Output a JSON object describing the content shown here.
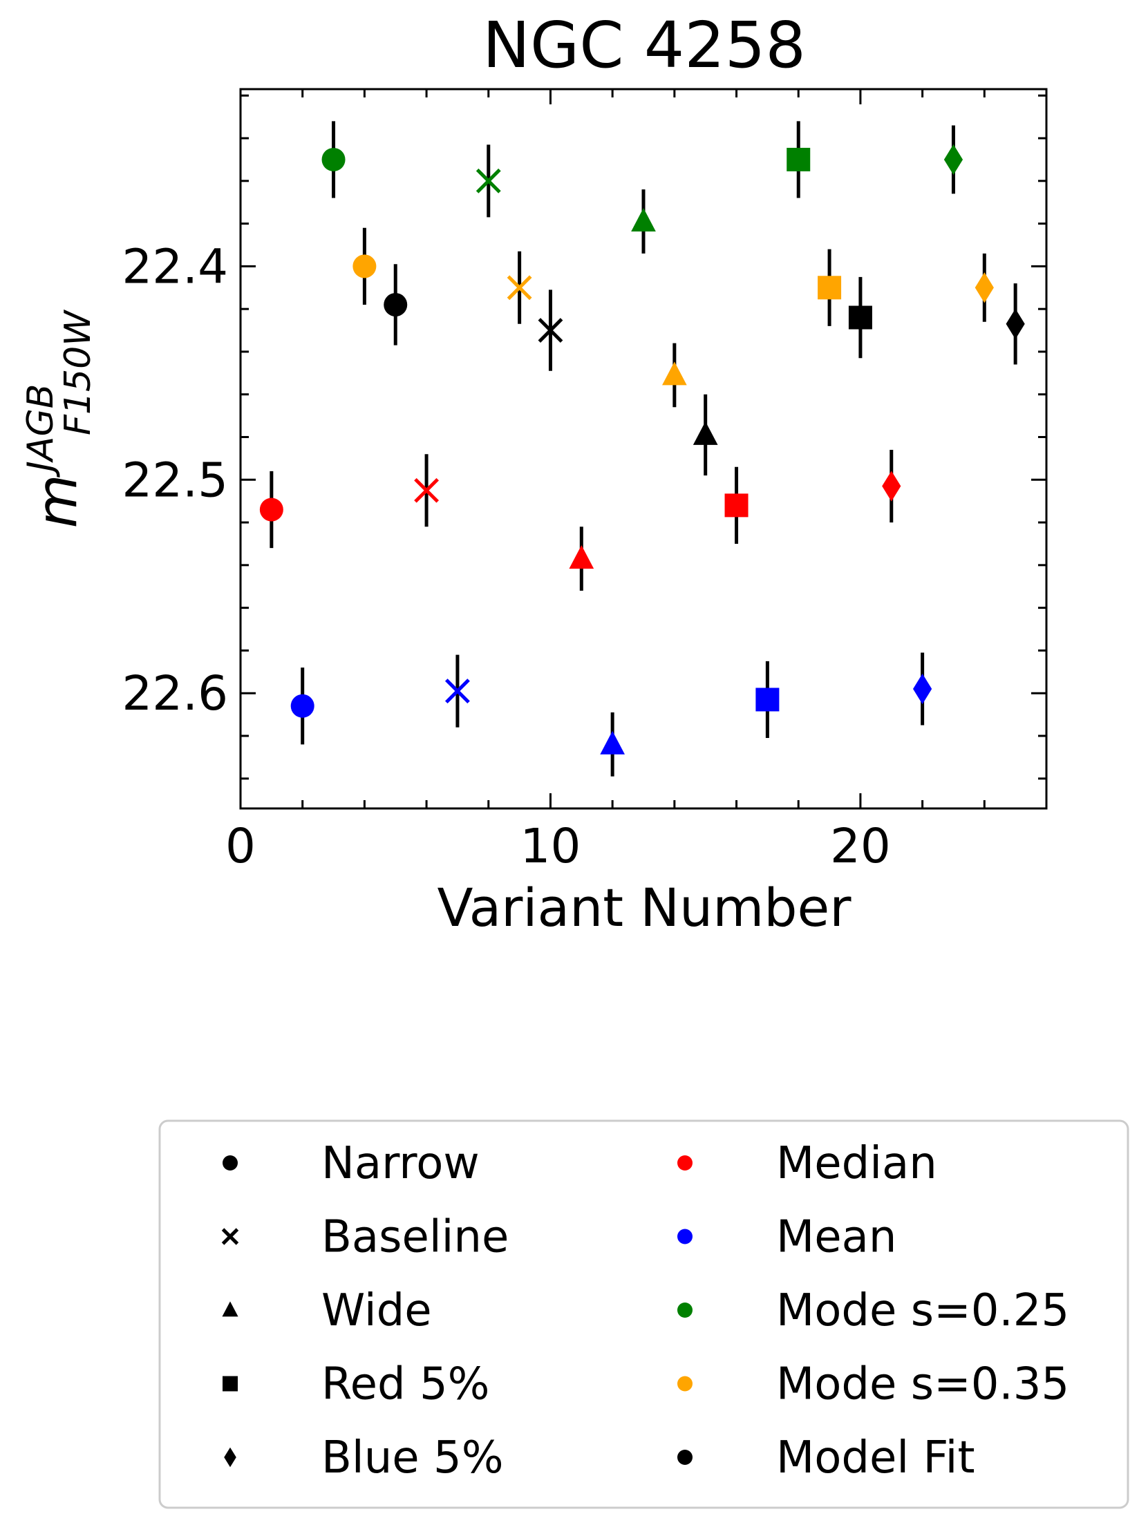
{
  "chart_data": {
    "type": "scatter",
    "title": "NGC 4258",
    "xlabel": "Variant Number",
    "ylabel": {
      "base": "m",
      "sup": "JAGB",
      "sub": "F150W"
    },
    "xlim": [
      0,
      26
    ],
    "ylim": [
      22.654,
      22.317
    ],
    "y_inverted": true,
    "xticks": [
      0,
      10,
      20
    ],
    "yticks": [
      22.4,
      22.5,
      22.6
    ],
    "ytick_labels": [
      "22.4",
      "22.5",
      "22.6"
    ],
    "xtick_labels": [
      "0",
      "10",
      "20"
    ],
    "error_bar_color": "#000000",
    "colors": {
      "Median": "#ff0000",
      "Mean": "#0000ff",
      "Mode s=0.25": "#008000",
      "Mode s=0.35": "#ffa500",
      "Model Fit": "#000000"
    },
    "points": [
      {
        "x": 1,
        "y": 22.514,
        "err": 0.018,
        "marker": "circle",
        "color": "#ff0000"
      },
      {
        "x": 2,
        "y": 22.606,
        "err": 0.018,
        "marker": "circle",
        "color": "#0000ff"
      },
      {
        "x": 3,
        "y": 22.35,
        "err": 0.018,
        "marker": "circle",
        "color": "#008000"
      },
      {
        "x": 4,
        "y": 22.4,
        "err": 0.018,
        "marker": "circle",
        "color": "#ffa500"
      },
      {
        "x": 5,
        "y": 22.418,
        "err": 0.019,
        "marker": "circle",
        "color": "#000000"
      },
      {
        "x": 6,
        "y": 22.505,
        "err": 0.017,
        "marker": "x",
        "color": "#ff0000"
      },
      {
        "x": 7,
        "y": 22.599,
        "err": 0.017,
        "marker": "x",
        "color": "#0000ff"
      },
      {
        "x": 8,
        "y": 22.36,
        "err": 0.017,
        "marker": "x",
        "color": "#008000"
      },
      {
        "x": 9,
        "y": 22.41,
        "err": 0.017,
        "marker": "x",
        "color": "#ffa500"
      },
      {
        "x": 10,
        "y": 22.43,
        "err": 0.019,
        "marker": "x",
        "color": "#000000"
      },
      {
        "x": 11,
        "y": 22.537,
        "err": 0.015,
        "marker": "triangle",
        "color": "#ff0000"
      },
      {
        "x": 12,
        "y": 22.624,
        "err": 0.015,
        "marker": "triangle",
        "color": "#0000ff"
      },
      {
        "x": 13,
        "y": 22.379,
        "err": 0.015,
        "marker": "triangle",
        "color": "#008000"
      },
      {
        "x": 14,
        "y": 22.451,
        "err": 0.015,
        "marker": "triangle",
        "color": "#ffa500"
      },
      {
        "x": 15,
        "y": 22.479,
        "err": 0.019,
        "marker": "triangle",
        "color": "#000000"
      },
      {
        "x": 16,
        "y": 22.512,
        "err": 0.018,
        "marker": "square",
        "color": "#ff0000"
      },
      {
        "x": 17,
        "y": 22.603,
        "err": 0.018,
        "marker": "square",
        "color": "#0000ff"
      },
      {
        "x": 18,
        "y": 22.35,
        "err": 0.018,
        "marker": "square",
        "color": "#008000"
      },
      {
        "x": 19,
        "y": 22.41,
        "err": 0.018,
        "marker": "square",
        "color": "#ffa500"
      },
      {
        "x": 20,
        "y": 22.424,
        "err": 0.019,
        "marker": "square",
        "color": "#000000"
      },
      {
        "x": 21,
        "y": 22.503,
        "err": 0.017,
        "marker": "diamond",
        "color": "#ff0000"
      },
      {
        "x": 22,
        "y": 22.598,
        "err": 0.017,
        "marker": "diamond",
        "color": "#0000ff"
      },
      {
        "x": 23,
        "y": 22.35,
        "err": 0.016,
        "marker": "diamond",
        "color": "#008000"
      },
      {
        "x": 24,
        "y": 22.41,
        "err": 0.016,
        "marker": "diamond",
        "color": "#ffa500"
      },
      {
        "x": 25,
        "y": 22.427,
        "err": 0.019,
        "marker": "diamond",
        "color": "#000000"
      }
    ],
    "legend": {
      "placement": "bottom, below plot",
      "columns": [
        [
          {
            "label": "Narrow",
            "marker": "circle",
            "color": "#000000"
          },
          {
            "label": "Baseline",
            "marker": "x",
            "color": "#000000"
          },
          {
            "label": "Wide",
            "marker": "triangle",
            "color": "#000000"
          },
          {
            "label": "Red 5%",
            "marker": "square",
            "color": "#000000"
          },
          {
            "label": "Blue 5%",
            "marker": "diamond",
            "color": "#000000"
          }
        ],
        [
          {
            "label": "Median",
            "marker": "circle",
            "color": "#ff0000"
          },
          {
            "label": "Mean",
            "marker": "circle",
            "color": "#0000ff"
          },
          {
            "label": "Mode s=0.25",
            "marker": "circle",
            "color": "#008000"
          },
          {
            "label": "Mode s=0.35",
            "marker": "circle",
            "color": "#ffa500"
          },
          {
            "label": "Model Fit",
            "marker": "circle",
            "color": "#000000"
          }
        ]
      ]
    }
  }
}
